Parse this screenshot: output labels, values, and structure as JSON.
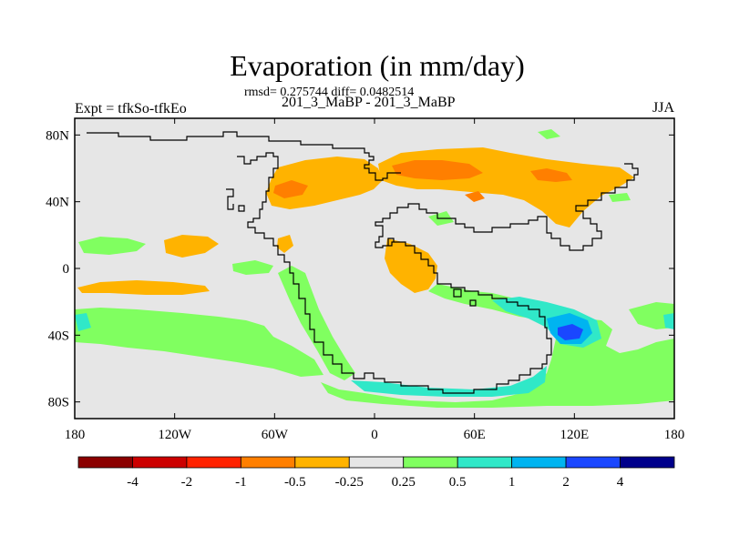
{
  "title": "Evaporation (in mm/day)",
  "stats_line": "rmsd= 0.275744 diff= 0.0482514",
  "subtitle": "201_3_MaBP - 201_3_MaBP",
  "left_label": "Expt = tfkSo-tfkEo",
  "right_label": "JJA",
  "map": {
    "projection": "cylindrical-equidistant",
    "lon_range": [
      -180,
      180
    ],
    "lat_range": [
      -90,
      90
    ],
    "x_ticks": [
      {
        "value": -180,
        "label": "180"
      },
      {
        "value": -120,
        "label": "120W"
      },
      {
        "value": -60,
        "label": "60W"
      },
      {
        "value": 0,
        "label": "0"
      },
      {
        "value": 60,
        "label": "60E"
      },
      {
        "value": 120,
        "label": "120E"
      },
      {
        "value": 180,
        "label": "180"
      }
    ],
    "y_ticks": [
      {
        "value": 80,
        "label": "80N"
      },
      {
        "value": 40,
        "label": "40N"
      },
      {
        "value": 0,
        "label": "0"
      },
      {
        "value": -40,
        "label": "40S"
      },
      {
        "value": -80,
        "label": "80S"
      }
    ],
    "background_color": "#e6e6e6",
    "coastline_color": "#000000"
  },
  "colorbar": {
    "colors": [
      "#8b0000",
      "#cc0000",
      "#ff2200",
      "#ff7f00",
      "#ffb300",
      "#e6e6e6",
      "#80ff60",
      "#30e8c8",
      "#00b4f0",
      "#1a47ff",
      "#00008b"
    ],
    "labels": [
      "-4",
      "-2",
      "-1",
      "-0.5",
      "-0.25",
      "0.25",
      "0.5",
      "1",
      "2",
      "4"
    ]
  }
}
